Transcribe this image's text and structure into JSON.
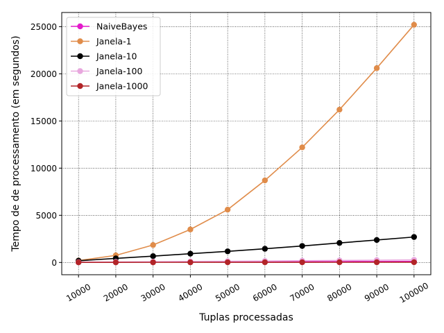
{
  "chart_data": {
    "type": "line",
    "xlabel": "Tuplas processadas",
    "ylabel": "Tempo de de processamento (em segundos)",
    "categories": [
      "10000",
      "20000",
      "30000",
      "40000",
      "50000",
      "60000",
      "70000",
      "80000",
      "90000",
      "100000"
    ],
    "x": [
      10000,
      20000,
      30000,
      40000,
      50000,
      60000,
      70000,
      80000,
      90000,
      100000
    ],
    "yticks": [
      "0",
      "5000",
      "10000",
      "15000",
      "20000",
      "25000"
    ],
    "ylim": [
      -1300,
      26500
    ],
    "xlim": [
      5500,
      104500
    ],
    "grid": true,
    "legend_position": "top-left",
    "series": [
      {
        "name": "NaiveBayes",
        "color": "#e31acb",
        "values": [
          25,
          35,
          45,
          55,
          65,
          75,
          85,
          95,
          105,
          115
        ]
      },
      {
        "name": "Janela-1",
        "color": "#e08c4a",
        "values": [
          200,
          750,
          1850,
          3500,
          5600,
          8700,
          12200,
          16200,
          20600,
          25200
        ]
      },
      {
        "name": "Janela-10",
        "color": "#000000",
        "values": [
          180,
          430,
          670,
          930,
          1180,
          1450,
          1750,
          2070,
          2380,
          2700
        ]
      },
      {
        "name": "Janela-100",
        "color": "#e8a7de",
        "values": [
          40,
          60,
          85,
          110,
          135,
          160,
          185,
          215,
          245,
          280
        ]
      },
      {
        "name": "Janela-1000",
        "color": "#b22428",
        "values": [
          10,
          12,
          14,
          16,
          18,
          20,
          22,
          24,
          26,
          28
        ]
      }
    ]
  }
}
